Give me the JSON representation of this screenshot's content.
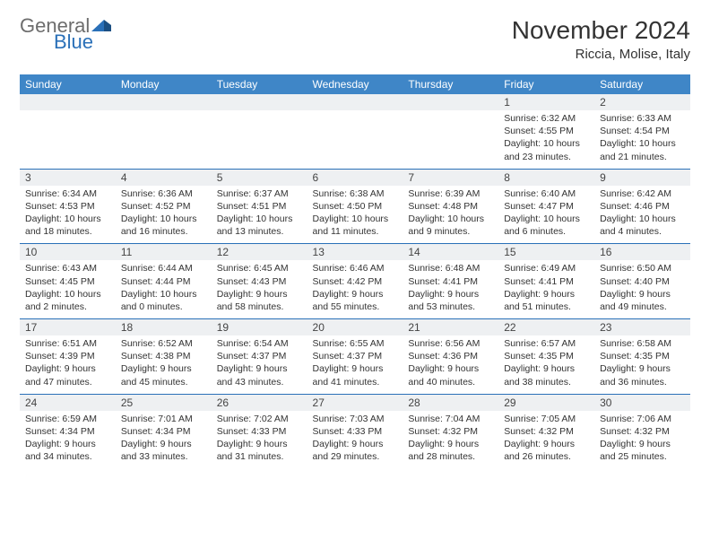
{
  "logo": {
    "part1": "General",
    "part2": "Blue"
  },
  "header": {
    "title": "November 2024",
    "location": "Riccia, Molise, Italy"
  },
  "colors": {
    "header_bg": "#3f86c7",
    "header_text": "#ffffff",
    "daynum_bg": "#eef0f2",
    "separator": "#2a70b8",
    "body_text": "#333333",
    "logo_gray": "#6d6d6d",
    "logo_blue": "#2a70b8"
  },
  "dow": [
    "Sunday",
    "Monday",
    "Tuesday",
    "Wednesday",
    "Thursday",
    "Friday",
    "Saturday"
  ],
  "weeks": [
    [
      null,
      null,
      null,
      null,
      null,
      {
        "n": "1",
        "sr": "Sunrise: 6:32 AM",
        "ss": "Sunset: 4:55 PM",
        "d1": "Daylight: 10 hours",
        "d2": "and 23 minutes."
      },
      {
        "n": "2",
        "sr": "Sunrise: 6:33 AM",
        "ss": "Sunset: 4:54 PM",
        "d1": "Daylight: 10 hours",
        "d2": "and 21 minutes."
      }
    ],
    [
      {
        "n": "3",
        "sr": "Sunrise: 6:34 AM",
        "ss": "Sunset: 4:53 PM",
        "d1": "Daylight: 10 hours",
        "d2": "and 18 minutes."
      },
      {
        "n": "4",
        "sr": "Sunrise: 6:36 AM",
        "ss": "Sunset: 4:52 PM",
        "d1": "Daylight: 10 hours",
        "d2": "and 16 minutes."
      },
      {
        "n": "5",
        "sr": "Sunrise: 6:37 AM",
        "ss": "Sunset: 4:51 PM",
        "d1": "Daylight: 10 hours",
        "d2": "and 13 minutes."
      },
      {
        "n": "6",
        "sr": "Sunrise: 6:38 AM",
        "ss": "Sunset: 4:50 PM",
        "d1": "Daylight: 10 hours",
        "d2": "and 11 minutes."
      },
      {
        "n": "7",
        "sr": "Sunrise: 6:39 AM",
        "ss": "Sunset: 4:48 PM",
        "d1": "Daylight: 10 hours",
        "d2": "and 9 minutes."
      },
      {
        "n": "8",
        "sr": "Sunrise: 6:40 AM",
        "ss": "Sunset: 4:47 PM",
        "d1": "Daylight: 10 hours",
        "d2": "and 6 minutes."
      },
      {
        "n": "9",
        "sr": "Sunrise: 6:42 AM",
        "ss": "Sunset: 4:46 PM",
        "d1": "Daylight: 10 hours",
        "d2": "and 4 minutes."
      }
    ],
    [
      {
        "n": "10",
        "sr": "Sunrise: 6:43 AM",
        "ss": "Sunset: 4:45 PM",
        "d1": "Daylight: 10 hours",
        "d2": "and 2 minutes."
      },
      {
        "n": "11",
        "sr": "Sunrise: 6:44 AM",
        "ss": "Sunset: 4:44 PM",
        "d1": "Daylight: 10 hours",
        "d2": "and 0 minutes."
      },
      {
        "n": "12",
        "sr": "Sunrise: 6:45 AM",
        "ss": "Sunset: 4:43 PM",
        "d1": "Daylight: 9 hours",
        "d2": "and 58 minutes."
      },
      {
        "n": "13",
        "sr": "Sunrise: 6:46 AM",
        "ss": "Sunset: 4:42 PM",
        "d1": "Daylight: 9 hours",
        "d2": "and 55 minutes."
      },
      {
        "n": "14",
        "sr": "Sunrise: 6:48 AM",
        "ss": "Sunset: 4:41 PM",
        "d1": "Daylight: 9 hours",
        "d2": "and 53 minutes."
      },
      {
        "n": "15",
        "sr": "Sunrise: 6:49 AM",
        "ss": "Sunset: 4:41 PM",
        "d1": "Daylight: 9 hours",
        "d2": "and 51 minutes."
      },
      {
        "n": "16",
        "sr": "Sunrise: 6:50 AM",
        "ss": "Sunset: 4:40 PM",
        "d1": "Daylight: 9 hours",
        "d2": "and 49 minutes."
      }
    ],
    [
      {
        "n": "17",
        "sr": "Sunrise: 6:51 AM",
        "ss": "Sunset: 4:39 PM",
        "d1": "Daylight: 9 hours",
        "d2": "and 47 minutes."
      },
      {
        "n": "18",
        "sr": "Sunrise: 6:52 AM",
        "ss": "Sunset: 4:38 PM",
        "d1": "Daylight: 9 hours",
        "d2": "and 45 minutes."
      },
      {
        "n": "19",
        "sr": "Sunrise: 6:54 AM",
        "ss": "Sunset: 4:37 PM",
        "d1": "Daylight: 9 hours",
        "d2": "and 43 minutes."
      },
      {
        "n": "20",
        "sr": "Sunrise: 6:55 AM",
        "ss": "Sunset: 4:37 PM",
        "d1": "Daylight: 9 hours",
        "d2": "and 41 minutes."
      },
      {
        "n": "21",
        "sr": "Sunrise: 6:56 AM",
        "ss": "Sunset: 4:36 PM",
        "d1": "Daylight: 9 hours",
        "d2": "and 40 minutes."
      },
      {
        "n": "22",
        "sr": "Sunrise: 6:57 AM",
        "ss": "Sunset: 4:35 PM",
        "d1": "Daylight: 9 hours",
        "d2": "and 38 minutes."
      },
      {
        "n": "23",
        "sr": "Sunrise: 6:58 AM",
        "ss": "Sunset: 4:35 PM",
        "d1": "Daylight: 9 hours",
        "d2": "and 36 minutes."
      }
    ],
    [
      {
        "n": "24",
        "sr": "Sunrise: 6:59 AM",
        "ss": "Sunset: 4:34 PM",
        "d1": "Daylight: 9 hours",
        "d2": "and 34 minutes."
      },
      {
        "n": "25",
        "sr": "Sunrise: 7:01 AM",
        "ss": "Sunset: 4:34 PM",
        "d1": "Daylight: 9 hours",
        "d2": "and 33 minutes."
      },
      {
        "n": "26",
        "sr": "Sunrise: 7:02 AM",
        "ss": "Sunset: 4:33 PM",
        "d1": "Daylight: 9 hours",
        "d2": "and 31 minutes."
      },
      {
        "n": "27",
        "sr": "Sunrise: 7:03 AM",
        "ss": "Sunset: 4:33 PM",
        "d1": "Daylight: 9 hours",
        "d2": "and 29 minutes."
      },
      {
        "n": "28",
        "sr": "Sunrise: 7:04 AM",
        "ss": "Sunset: 4:32 PM",
        "d1": "Daylight: 9 hours",
        "d2": "and 28 minutes."
      },
      {
        "n": "29",
        "sr": "Sunrise: 7:05 AM",
        "ss": "Sunset: 4:32 PM",
        "d1": "Daylight: 9 hours",
        "d2": "and 26 minutes."
      },
      {
        "n": "30",
        "sr": "Sunrise: 7:06 AM",
        "ss": "Sunset: 4:32 PM",
        "d1": "Daylight: 9 hours",
        "d2": "and 25 minutes."
      }
    ]
  ]
}
